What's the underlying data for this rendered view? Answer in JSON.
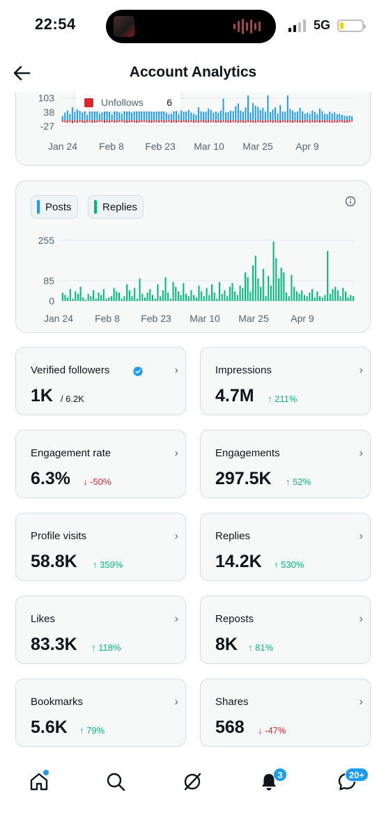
{
  "status_bar": {
    "time": "22:54",
    "network": "5G"
  },
  "header": {
    "title": "Account Analytics",
    "back_icon": "arrow-left-icon"
  },
  "followers_chart": {
    "y_ticks": [
      "103",
      "38",
      "-27"
    ],
    "x_ticks": [
      "Jan 24",
      "Feb 8",
      "Feb 23",
      "Mar 10",
      "Mar 25",
      "Apr 9"
    ],
    "tooltip": {
      "label": "Unfollows",
      "value": "6"
    },
    "colors": {
      "follows": "#1d9bf0",
      "unfollows": "#e0262d"
    }
  },
  "activity_chart": {
    "legend": [
      {
        "label": "Posts",
        "color": "#1d9bf0"
      },
      {
        "label": "Replies",
        "color": "#00ba7c"
      }
    ],
    "info_icon": "info-icon",
    "y_ticks": [
      "255",
      "85",
      "0"
    ],
    "x_ticks": [
      "Jan 24",
      "Feb 8",
      "Feb 23",
      "Mar 10",
      "Mar 25",
      "Apr 9"
    ]
  },
  "chart_data": [
    {
      "type": "bar",
      "ylim": [
        -40,
        115
      ],
      "series": [
        {
          "name": "Follows",
          "values": [
            20,
            35,
            45,
            30,
            60,
            40,
            55,
            80,
            35,
            65,
            25,
            70,
            40,
            55,
            60,
            30,
            35,
            42,
            48,
            38,
            28,
            52,
            45,
            36,
            30,
            55,
            60,
            72,
            35,
            40,
            45,
            50,
            58,
            40,
            60,
            78,
            45,
            38,
            52,
            40,
            45,
            62,
            34,
            28,
            30,
            55,
            58,
            30,
            45,
            40,
            40,
            48,
            35,
            30,
            25,
            60,
            42,
            38,
            40,
            55,
            48,
            35,
            40,
            35,
            45,
            100,
            36,
            38,
            45,
            42,
            65,
            78,
            45,
            40,
            60,
            115,
            35,
            80,
            68,
            62,
            48,
            58,
            40,
            115,
            38,
            50,
            60,
            32,
            70,
            40,
            40,
            115,
            52,
            45,
            38,
            40,
            58,
            42,
            30,
            35,
            30,
            45,
            38,
            28,
            55,
            42,
            30,
            28,
            40,
            32,
            36,
            28,
            30,
            25,
            22,
            20,
            22,
            18
          ]
        },
        {
          "name": "Unfollows",
          "values": [
            -8,
            -10,
            -12,
            -9,
            -14,
            -10,
            -12,
            -9,
            -11,
            -13,
            -10,
            -9,
            -12,
            -11,
            -10,
            -8,
            -9,
            -12,
            -10,
            -11,
            -9,
            -12,
            -10,
            -9,
            -8,
            -11,
            -12,
            -10,
            -9,
            -11,
            -12,
            -10,
            -9,
            -8,
            -10,
            -11,
            -12,
            -9,
            -10,
            -11,
            -8,
            -12,
            -10,
            -9,
            -11,
            -10,
            -12,
            -9,
            -10,
            -8,
            -11,
            -10,
            -9,
            -12,
            -10,
            -11,
            -9,
            -10,
            -12,
            -11,
            -10,
            -9,
            -12,
            -10,
            -11,
            -9,
            -10,
            -12,
            -11,
            -10,
            -9,
            -12,
            -10,
            -11,
            -12,
            -9,
            -10,
            -11,
            -12,
            -10,
            -9,
            -12,
            -11,
            -10,
            -9,
            -12,
            -10,
            -11,
            -12,
            -9,
            -10,
            -11,
            -10,
            -12,
            -9,
            -10,
            -11,
            -12,
            -10,
            -9,
            -12,
            -10,
            -11,
            -9,
            -12,
            -10,
            -11,
            -9,
            -10,
            -12,
            -10,
            -11,
            -9,
            -10,
            -12,
            -11,
            -10,
            -6
          ]
        }
      ]
    },
    {
      "type": "bar",
      "ylim": [
        0,
        255
      ],
      "series": [
        {
          "name": "Replies",
          "values": [
            35,
            25,
            15,
            50,
            10,
            40,
            30,
            60,
            15,
            5,
            30,
            20,
            45,
            10,
            35,
            25,
            50,
            10,
            15,
            20,
            55,
            40,
            35,
            10,
            20,
            70,
            45,
            20,
            55,
            10,
            95,
            30,
            15,
            35,
            50,
            25,
            10,
            70,
            20,
            45,
            100,
            35,
            10,
            80,
            60,
            40,
            25,
            75,
            30,
            20,
            45,
            25,
            15,
            65,
            40,
            20,
            55,
            25,
            70,
            35,
            10,
            80,
            30,
            45,
            20,
            60,
            75,
            40,
            25,
            65,
            55,
            120,
            100,
            40,
            150,
            190,
            95,
            60,
            135,
            20,
            105,
            65,
            250,
            180,
            95,
            140,
            120,
            35,
            20,
            110,
            60,
            40,
            30,
            45,
            25,
            20,
            35,
            50,
            15,
            40,
            20,
            15,
            25,
            210,
            30,
            50,
            60,
            45,
            20,
            55,
            40,
            15,
            25,
            20
          ]
        }
      ]
    }
  ],
  "metrics": [
    {
      "label": "Verified followers",
      "value": "1K",
      "sub": "/ 6.2K",
      "verified_icon": "verified-badge-icon"
    },
    {
      "label": "Impressions",
      "value": "4.7M",
      "change": "211%",
      "direction": "up"
    },
    {
      "label": "Engagement rate",
      "value": "6.3%",
      "change": "-50%",
      "direction": "down"
    },
    {
      "label": "Engagements",
      "value": "297.5K",
      "change": "52%",
      "direction": "up"
    },
    {
      "label": "Profile visits",
      "value": "58.8K",
      "change": "359%",
      "direction": "up"
    },
    {
      "label": "Replies",
      "value": "14.2K",
      "change": "530%",
      "direction": "up"
    },
    {
      "label": "Likes",
      "value": "83.3K",
      "change": "118%",
      "direction": "up"
    },
    {
      "label": "Reposts",
      "value": "8K",
      "change": "81%",
      "direction": "up"
    },
    {
      "label": "Bookmarks",
      "value": "5.6K",
      "change": "79%",
      "direction": "up"
    },
    {
      "label": "Shares",
      "value": "568",
      "change": "-47%",
      "direction": "down"
    }
  ],
  "bottom_nav": {
    "items": [
      "home-icon",
      "search-icon",
      "grok-icon",
      "notifications-icon",
      "messages-icon"
    ],
    "notifications_badge": "3",
    "messages_badge": "20+"
  }
}
